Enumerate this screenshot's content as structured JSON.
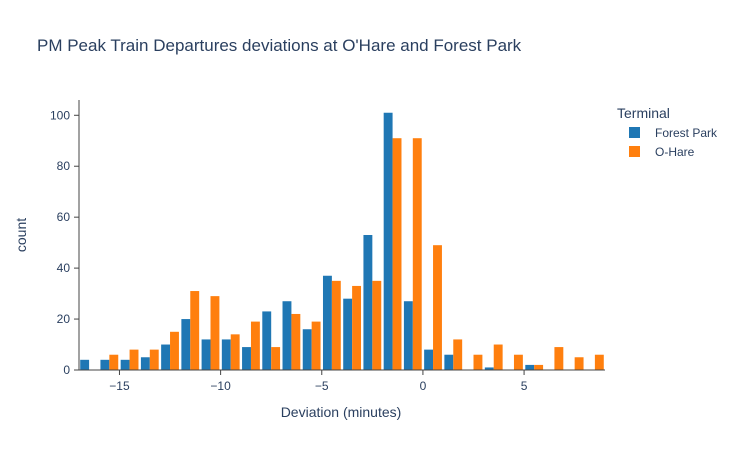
{
  "chart_data": {
    "type": "bar",
    "title": "PM Peak Train Departures deviations at O'Hare and Forest Park",
    "xlabel": "Deviation (minutes)",
    "ylabel": "count",
    "xlim": [
      -17,
      9
    ],
    "ylim": [
      0,
      106
    ],
    "x_ticks": [
      -15,
      -10,
      -5,
      0,
      5
    ],
    "y_ticks": [
      0,
      20,
      40,
      60,
      80,
      100
    ],
    "grid": false,
    "legend": {
      "title": "Terminal",
      "position": "top-right"
    },
    "bin_size": 1,
    "series": [
      {
        "name": "Forest Park",
        "color": "#1f77b4",
        "x": [
          -17,
          -16,
          -15,
          -14,
          -13,
          -12,
          -11,
          -10,
          -9,
          -8,
          -7,
          -6,
          -5,
          -4,
          -3,
          -2,
          -1,
          0,
          1,
          2,
          3,
          4,
          5
        ],
        "values": [
          4,
          4,
          4,
          5,
          10,
          20,
          12,
          12,
          9,
          23,
          27,
          16,
          37,
          28,
          53,
          101,
          27,
          8,
          6,
          0,
          1,
          0,
          2
        ]
      },
      {
        "name": "O-Hare",
        "color": "#ff7f0e",
        "x": [
          -16,
          -15,
          -14,
          -13,
          -12,
          -11,
          -10,
          -9,
          -8,
          -7,
          -6,
          -5,
          -4,
          -3,
          -2,
          -1,
          0,
          1,
          2,
          3,
          4,
          5,
          6,
          7,
          8
        ],
        "values": [
          6,
          8,
          8,
          15,
          31,
          29,
          14,
          19,
          9,
          22,
          19,
          35,
          33,
          35,
          91,
          91,
          49,
          12,
          6,
          10,
          6,
          2,
          9,
          5,
          6
        ]
      }
    ]
  }
}
